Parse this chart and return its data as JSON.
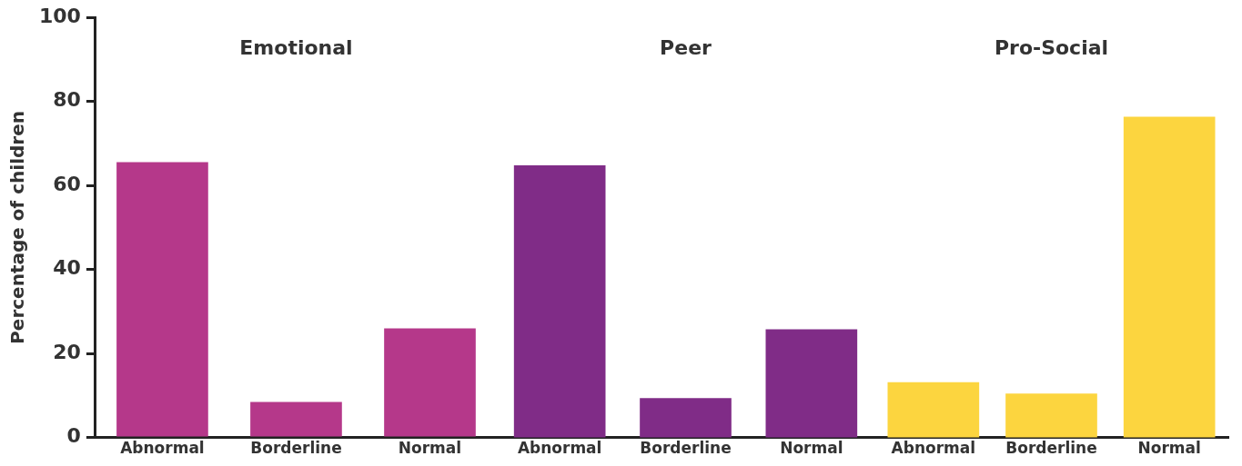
{
  "chart_data": [
    {
      "type": "bar",
      "title": "Emotional",
      "ylabel": "Percentage of children",
      "categories": [
        "Abnormal",
        "Borderline",
        "Normal"
      ],
      "values": [
        65.5,
        8.4,
        25.9
      ],
      "color": "#b5388a",
      "ylim": [
        0,
        100
      ],
      "yticks": [
        0,
        20,
        40,
        60,
        80,
        100
      ],
      "grid": false
    },
    {
      "type": "bar",
      "title": "Peer",
      "categories": [
        "Abnormal",
        "Borderline",
        "Normal"
      ],
      "values": [
        64.7,
        9.3,
        25.7
      ],
      "color": "#802c87",
      "ylim": [
        0,
        100
      ],
      "yticks": [
        0,
        20,
        40,
        60,
        80,
        100
      ],
      "grid": false,
      "tick_labels": "x"
    },
    {
      "type": "bar",
      "title": "Pro-Social",
      "categories": [
        "Abnormal",
        "Borderline",
        "Normal"
      ],
      "values": [
        13.1,
        10.4,
        76.3
      ],
      "color": "#fcd53f",
      "ylim": [
        0,
        100
      ],
      "yticks": [
        0,
        20,
        40,
        60,
        80,
        100
      ],
      "grid": false,
      "tick_labels": "x"
    }
  ]
}
